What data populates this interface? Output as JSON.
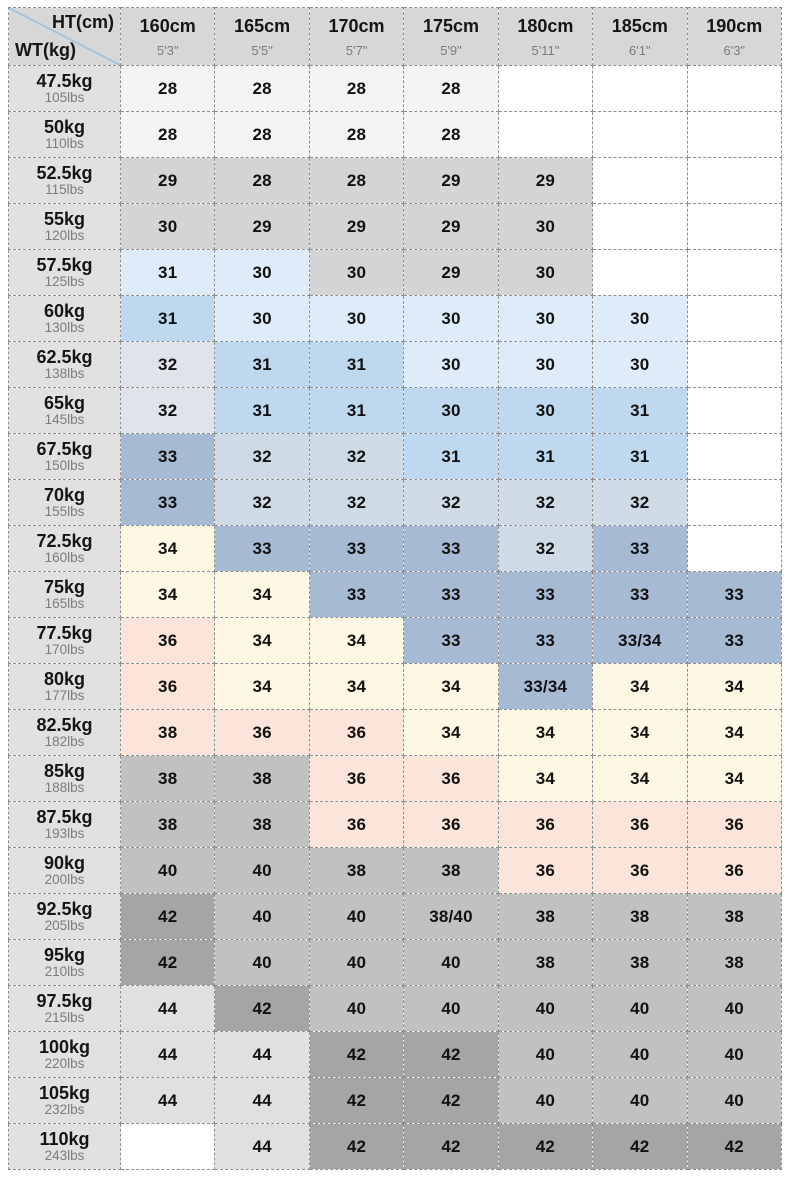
{
  "palette": {
    "white": "#ffffff",
    "near_white": "#f4f4f4",
    "gray_mid": "#d4d4d4",
    "gray": "#c1c1c1",
    "gray_dark": "#a5a5a5",
    "gray_light": "#e0e0e0",
    "blue_light": "#ddecf8",
    "blue_mid": "#bed8ef",
    "bluegray_pale": "#dfe4ea",
    "bluegray_light": "#cedae6",
    "bluegray": "#a6bad3",
    "cream": "#fdf8e4",
    "pink": "#fbe5da",
    "header_bg": "#d7d7d7",
    "rowheader_bg": "#e1e1e1",
    "diagonal_line": "#a9c3db"
  },
  "corner": {
    "top_label": "HT(cm)",
    "bottom_label": "WT(kg)"
  },
  "columns": [
    {
      "cm": "160cm",
      "inches": "5'3\""
    },
    {
      "cm": "165cm",
      "inches": "5'5\""
    },
    {
      "cm": "170cm",
      "inches": "5'7\""
    },
    {
      "cm": "175cm",
      "inches": "5'9\""
    },
    {
      "cm": "180cm",
      "inches": "5'11\""
    },
    {
      "cm": "185cm",
      "inches": "6'1\""
    },
    {
      "cm": "190cm",
      "inches": "6'3\""
    }
  ],
  "rows": [
    {
      "kg": "47.5kg",
      "lbs": "105lbs",
      "cells": [
        {
          "v": "28",
          "bg": "near_white"
        },
        {
          "v": "28",
          "bg": "near_white"
        },
        {
          "v": "28",
          "bg": "near_white"
        },
        {
          "v": "28",
          "bg": "near_white"
        },
        {
          "v": "",
          "bg": "white"
        },
        {
          "v": "",
          "bg": "white"
        },
        {
          "v": "",
          "bg": "white"
        }
      ]
    },
    {
      "kg": "50kg",
      "lbs": "110lbs",
      "cells": [
        {
          "v": "28",
          "bg": "near_white"
        },
        {
          "v": "28",
          "bg": "near_white"
        },
        {
          "v": "28",
          "bg": "near_white"
        },
        {
          "v": "28",
          "bg": "near_white"
        },
        {
          "v": "",
          "bg": "white"
        },
        {
          "v": "",
          "bg": "white"
        },
        {
          "v": "",
          "bg": "white"
        }
      ]
    },
    {
      "kg": "52.5kg",
      "lbs": "115lbs",
      "cells": [
        {
          "v": "29",
          "bg": "gray_mid"
        },
        {
          "v": "28",
          "bg": "gray_mid"
        },
        {
          "v": "28",
          "bg": "gray_mid"
        },
        {
          "v": "29",
          "bg": "gray_mid"
        },
        {
          "v": "29",
          "bg": "gray_mid"
        },
        {
          "v": "",
          "bg": "white"
        },
        {
          "v": "",
          "bg": "white"
        }
      ]
    },
    {
      "kg": "55kg",
      "lbs": "120lbs",
      "cells": [
        {
          "v": "30",
          "bg": "gray_mid"
        },
        {
          "v": "29",
          "bg": "gray_mid"
        },
        {
          "v": "29",
          "bg": "gray_mid"
        },
        {
          "v": "29",
          "bg": "gray_mid"
        },
        {
          "v": "30",
          "bg": "gray_mid"
        },
        {
          "v": "",
          "bg": "white"
        },
        {
          "v": "",
          "bg": "white"
        }
      ]
    },
    {
      "kg": "57.5kg",
      "lbs": "125lbs",
      "cells": [
        {
          "v": "31",
          "bg": "blue_light"
        },
        {
          "v": "30",
          "bg": "blue_light"
        },
        {
          "v": "30",
          "bg": "gray_mid"
        },
        {
          "v": "29",
          "bg": "gray_mid"
        },
        {
          "v": "30",
          "bg": "gray_mid"
        },
        {
          "v": "",
          "bg": "white"
        },
        {
          "v": "",
          "bg": "white"
        }
      ]
    },
    {
      "kg": "60kg",
      "lbs": "130lbs",
      "cells": [
        {
          "v": "31",
          "bg": "blue_mid"
        },
        {
          "v": "30",
          "bg": "blue_light"
        },
        {
          "v": "30",
          "bg": "blue_light"
        },
        {
          "v": "30",
          "bg": "blue_light"
        },
        {
          "v": "30",
          "bg": "blue_light"
        },
        {
          "v": "30",
          "bg": "blue_light"
        },
        {
          "v": "",
          "bg": "white"
        }
      ]
    },
    {
      "kg": "62.5kg",
      "lbs": "138lbs",
      "cells": [
        {
          "v": "32",
          "bg": "bluegray_pale"
        },
        {
          "v": "31",
          "bg": "blue_mid"
        },
        {
          "v": "31",
          "bg": "blue_mid"
        },
        {
          "v": "30",
          "bg": "blue_light"
        },
        {
          "v": "30",
          "bg": "blue_light"
        },
        {
          "v": "30",
          "bg": "blue_light"
        },
        {
          "v": "",
          "bg": "white"
        }
      ]
    },
    {
      "kg": "65kg",
      "lbs": "145lbs",
      "cells": [
        {
          "v": "32",
          "bg": "bluegray_pale"
        },
        {
          "v": "31",
          "bg": "blue_mid"
        },
        {
          "v": "31",
          "bg": "blue_mid"
        },
        {
          "v": "30",
          "bg": "blue_mid"
        },
        {
          "v": "30",
          "bg": "blue_mid"
        },
        {
          "v": "31",
          "bg": "blue_mid"
        },
        {
          "v": "",
          "bg": "white"
        }
      ]
    },
    {
      "kg": "67.5kg",
      "lbs": "150lbs",
      "cells": [
        {
          "v": "33",
          "bg": "bluegray"
        },
        {
          "v": "32",
          "bg": "bluegray_light"
        },
        {
          "v": "32",
          "bg": "bluegray_light"
        },
        {
          "v": "31",
          "bg": "blue_mid"
        },
        {
          "v": "31",
          "bg": "blue_mid"
        },
        {
          "v": "31",
          "bg": "blue_mid"
        },
        {
          "v": "",
          "bg": "white"
        }
      ]
    },
    {
      "kg": "70kg",
      "lbs": "155lbs",
      "cells": [
        {
          "v": "33",
          "bg": "bluegray"
        },
        {
          "v": "32",
          "bg": "bluegray_light"
        },
        {
          "v": "32",
          "bg": "bluegray_light"
        },
        {
          "v": "32",
          "bg": "bluegray_light"
        },
        {
          "v": "32",
          "bg": "bluegray_light"
        },
        {
          "v": "32",
          "bg": "bluegray_light"
        },
        {
          "v": "",
          "bg": "white"
        }
      ]
    },
    {
      "kg": "72.5kg",
      "lbs": "160lbs",
      "cells": [
        {
          "v": "34",
          "bg": "cream"
        },
        {
          "v": "33",
          "bg": "bluegray"
        },
        {
          "v": "33",
          "bg": "bluegray"
        },
        {
          "v": "33",
          "bg": "bluegray"
        },
        {
          "v": "32",
          "bg": "bluegray_light"
        },
        {
          "v": "33",
          "bg": "bluegray"
        },
        {
          "v": "",
          "bg": "white"
        }
      ]
    },
    {
      "kg": "75kg",
      "lbs": "165lbs",
      "cells": [
        {
          "v": "34",
          "bg": "cream"
        },
        {
          "v": "34",
          "bg": "cream"
        },
        {
          "v": "33",
          "bg": "bluegray"
        },
        {
          "v": "33",
          "bg": "bluegray"
        },
        {
          "v": "33",
          "bg": "bluegray"
        },
        {
          "v": "33",
          "bg": "bluegray"
        },
        {
          "v": "33",
          "bg": "bluegray"
        }
      ]
    },
    {
      "kg": "77.5kg",
      "lbs": "170lbs",
      "cells": [
        {
          "v": "36",
          "bg": "pink"
        },
        {
          "v": "34",
          "bg": "cream"
        },
        {
          "v": "34",
          "bg": "cream"
        },
        {
          "v": "33",
          "bg": "bluegray"
        },
        {
          "v": "33",
          "bg": "bluegray"
        },
        {
          "v": "33/34",
          "bg": "bluegray"
        },
        {
          "v": "33",
          "bg": "bluegray"
        }
      ]
    },
    {
      "kg": "80kg",
      "lbs": "177lbs",
      "cells": [
        {
          "v": "36",
          "bg": "pink"
        },
        {
          "v": "34",
          "bg": "cream"
        },
        {
          "v": "34",
          "bg": "cream"
        },
        {
          "v": "34",
          "bg": "cream"
        },
        {
          "v": "33/34",
          "bg": "bluegray"
        },
        {
          "v": "34",
          "bg": "cream"
        },
        {
          "v": "34",
          "bg": "cream"
        }
      ]
    },
    {
      "kg": "82.5kg",
      "lbs": "182lbs",
      "cells": [
        {
          "v": "38",
          "bg": "pink"
        },
        {
          "v": "36",
          "bg": "pink"
        },
        {
          "v": "36",
          "bg": "pink"
        },
        {
          "v": "34",
          "bg": "cream"
        },
        {
          "v": "34",
          "bg": "cream"
        },
        {
          "v": "34",
          "bg": "cream"
        },
        {
          "v": "34",
          "bg": "cream"
        }
      ]
    },
    {
      "kg": "85kg",
      "lbs": "188lbs",
      "cells": [
        {
          "v": "38",
          "bg": "gray"
        },
        {
          "v": "38",
          "bg": "gray"
        },
        {
          "v": "36",
          "bg": "pink"
        },
        {
          "v": "36",
          "bg": "pink"
        },
        {
          "v": "34",
          "bg": "cream"
        },
        {
          "v": "34",
          "bg": "cream"
        },
        {
          "v": "34",
          "bg": "cream"
        }
      ]
    },
    {
      "kg": "87.5kg",
      "lbs": "193lbs",
      "cells": [
        {
          "v": "38",
          "bg": "gray"
        },
        {
          "v": "38",
          "bg": "gray"
        },
        {
          "v": "36",
          "bg": "pink"
        },
        {
          "v": "36",
          "bg": "pink"
        },
        {
          "v": "36",
          "bg": "pink"
        },
        {
          "v": "36",
          "bg": "pink"
        },
        {
          "v": "36",
          "bg": "pink"
        }
      ]
    },
    {
      "kg": "90kg",
      "lbs": "200lbs",
      "cells": [
        {
          "v": "40",
          "bg": "gray"
        },
        {
          "v": "40",
          "bg": "gray"
        },
        {
          "v": "38",
          "bg": "gray"
        },
        {
          "v": "38",
          "bg": "gray"
        },
        {
          "v": "36",
          "bg": "pink"
        },
        {
          "v": "36",
          "bg": "pink"
        },
        {
          "v": "36",
          "bg": "pink"
        }
      ]
    },
    {
      "kg": "92.5kg",
      "lbs": "205lbs",
      "cells": [
        {
          "v": "42",
          "bg": "gray_dark"
        },
        {
          "v": "40",
          "bg": "gray"
        },
        {
          "v": "40",
          "bg": "gray"
        },
        {
          "v": "38/40",
          "bg": "gray"
        },
        {
          "v": "38",
          "bg": "gray"
        },
        {
          "v": "38",
          "bg": "gray"
        },
        {
          "v": "38",
          "bg": "gray"
        }
      ]
    },
    {
      "kg": "95kg",
      "lbs": "210lbs",
      "cells": [
        {
          "v": "42",
          "bg": "gray_dark"
        },
        {
          "v": "40",
          "bg": "gray"
        },
        {
          "v": "40",
          "bg": "gray"
        },
        {
          "v": "40",
          "bg": "gray"
        },
        {
          "v": "38",
          "bg": "gray"
        },
        {
          "v": "38",
          "bg": "gray"
        },
        {
          "v": "38",
          "bg": "gray"
        }
      ]
    },
    {
      "kg": "97.5kg",
      "lbs": "215lbs",
      "cells": [
        {
          "v": "44",
          "bg": "gray_light"
        },
        {
          "v": "42",
          "bg": "gray_dark"
        },
        {
          "v": "40",
          "bg": "gray"
        },
        {
          "v": "40",
          "bg": "gray"
        },
        {
          "v": "40",
          "bg": "gray"
        },
        {
          "v": "40",
          "bg": "gray"
        },
        {
          "v": "40",
          "bg": "gray"
        }
      ]
    },
    {
      "kg": "100kg",
      "lbs": "220lbs",
      "cells": [
        {
          "v": "44",
          "bg": "gray_light"
        },
        {
          "v": "44",
          "bg": "gray_light"
        },
        {
          "v": "42",
          "bg": "gray_dark"
        },
        {
          "v": "42",
          "bg": "gray_dark"
        },
        {
          "v": "40",
          "bg": "gray"
        },
        {
          "v": "40",
          "bg": "gray"
        },
        {
          "v": "40",
          "bg": "gray"
        }
      ]
    },
    {
      "kg": "105kg",
      "lbs": "232lbs",
      "cells": [
        {
          "v": "44",
          "bg": "gray_light"
        },
        {
          "v": "44",
          "bg": "gray_light"
        },
        {
          "v": "42",
          "bg": "gray_dark"
        },
        {
          "v": "42",
          "bg": "gray_dark"
        },
        {
          "v": "40",
          "bg": "gray"
        },
        {
          "v": "40",
          "bg": "gray"
        },
        {
          "v": "40",
          "bg": "gray"
        }
      ]
    },
    {
      "kg": "110kg",
      "lbs": "243lbs",
      "cells": [
        {
          "v": "",
          "bg": "white"
        },
        {
          "v": "44",
          "bg": "gray_light"
        },
        {
          "v": "42",
          "bg": "gray_dark"
        },
        {
          "v": "42",
          "bg": "gray_dark"
        },
        {
          "v": "42",
          "bg": "gray_dark"
        },
        {
          "v": "42",
          "bg": "gray_dark"
        },
        {
          "v": "42",
          "bg": "gray_dark"
        }
      ]
    }
  ]
}
